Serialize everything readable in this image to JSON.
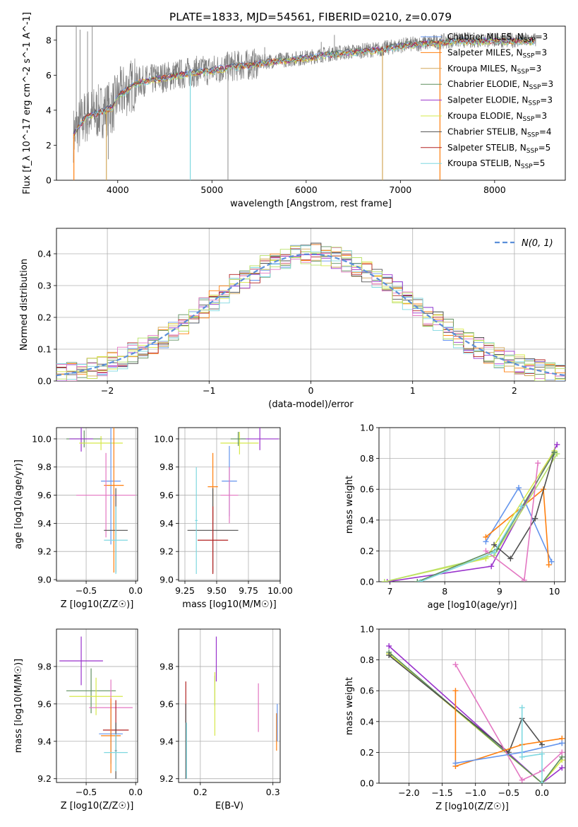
{
  "figure": {
    "title": "PLATE=1833, MJD=54561, FIBERID=0210, z=0.079"
  },
  "series_styles": [
    {
      "name": "Chabrier MILES",
      "color": "#6495ed"
    },
    {
      "name": "Salpeter MILES",
      "color": "#ff7f0e"
    },
    {
      "name": "Kroupa MILES",
      "color": "#d2a85a"
    },
    {
      "name": "Chabrier ELODIE",
      "color": "#5f8f5f"
    },
    {
      "name": "Salpeter ELODIE",
      "color": "#9932cc"
    },
    {
      "name": "Kroupa ELODIE",
      "color": "#d6e84a"
    },
    {
      "name": "Chabrier STELIB",
      "color": "#505050"
    },
    {
      "name": "Salpeter STELIB",
      "color": "#b22222"
    },
    {
      "name": "Kroupa STELIB",
      "color": "#7fd8e0"
    }
  ],
  "chart_data": [
    {
      "id": "spectrum",
      "type": "line",
      "title": "",
      "xlabel": "wavelength [Angstrom, rest frame]",
      "ylabel": "Flux [f_λ 10^-17 erg cm^-2 s^-1 A^-1]",
      "xlim": [
        3350,
        8750
      ],
      "ylim": [
        0,
        8.8
      ],
      "xticks": [
        4000,
        5000,
        6000,
        7000,
        8000
      ],
      "yticks": [
        0,
        2,
        4,
        6,
        8
      ],
      "grid": false,
      "legend_position": "lower-right",
      "legend": [
        {
          "label": "Chabrier MILES, N",
          "sub": "SSP",
          "tail": "=3",
          "color": "#6495ed"
        },
        {
          "label": "Salpeter MILES, N",
          "sub": "SSP",
          "tail": "=3",
          "color": "#ff7f0e"
        },
        {
          "label": "Kroupa MILES, N",
          "sub": "SSP",
          "tail": "=3",
          "color": "#d2a85a"
        },
        {
          "label": "Chabrier ELODIE, N",
          "sub": "SSP",
          "tail": "=3",
          "color": "#5f8f5f"
        },
        {
          "label": "Salpeter ELODIE, N",
          "sub": "SSP",
          "tail": "=3",
          "color": "#9932cc"
        },
        {
          "label": "Kroupa ELODIE, N",
          "sub": "SSP",
          "tail": "=3",
          "color": "#d6e84a"
        },
        {
          "label": "Chabrier STELIB, N",
          "sub": "SSP",
          "tail": "=4",
          "color": "#505050"
        },
        {
          "label": "Salpeter STELIB, N",
          "sub": "SSP",
          "tail": "=5",
          "color": "#b22222"
        },
        {
          "label": "Kroupa STELIB, N",
          "sub": "SSP",
          "tail": "=5",
          "color": "#7fd8e0"
        }
      ],
      "data_color": "#808080",
      "data_x_range": [
        3530,
        8440
      ],
      "continuum": [
        [
          3530,
          2.6
        ],
        [
          3650,
          3.6
        ],
        [
          3800,
          3.9
        ],
        [
          3950,
          4.2
        ],
        [
          4000,
          4.8
        ],
        [
          4200,
          5.6
        ],
        [
          4400,
          5.8
        ],
        [
          4600,
          6.0
        ],
        [
          4800,
          6.2
        ],
        [
          5000,
          6.3
        ],
        [
          5200,
          6.5
        ],
        [
          5400,
          6.6
        ],
        [
          5600,
          6.8
        ],
        [
          5800,
          6.9
        ],
        [
          6000,
          7.0
        ],
        [
          6200,
          7.2
        ],
        [
          6400,
          7.3
        ],
        [
          6600,
          7.4
        ],
        [
          6800,
          7.5
        ],
        [
          7000,
          7.7
        ],
        [
          7200,
          7.8
        ],
        [
          7400,
          7.9
        ],
        [
          7600,
          8.0
        ],
        [
          7800,
          8.0
        ],
        [
          8000,
          8.0
        ],
        [
          8200,
          8.0
        ],
        [
          8440,
          8.0
        ]
      ],
      "model_dips": [
        {
          "x": 3535,
          "y": 0.0,
          "color": "#ff7f0e"
        },
        {
          "x": 3880,
          "y": 0.0,
          "color": "#d2a85a"
        },
        {
          "x": 4770,
          "y": 0.0,
          "color": "#7fd8e0"
        },
        {
          "x": 6810,
          "y": 0.0,
          "color": "#d2a85a"
        },
        {
          "x": 7420,
          "y": 0.0,
          "color": "#ff7f0e"
        }
      ],
      "data_spikes": [
        {
          "x": 3560,
          "y": 8.8
        },
        {
          "x": 3600,
          "y": 8.6
        },
        {
          "x": 3680,
          "y": 8.5
        },
        {
          "x": 3730,
          "y": 8.8
        },
        {
          "x": 3900,
          "y": 1.2
        },
        {
          "x": 5170,
          "y": 0.0
        },
        {
          "x": 5560,
          "y": 7.6
        },
        {
          "x": 6160,
          "y": 7.9
        },
        {
          "x": 6300,
          "y": 8.3
        }
      ]
    },
    {
      "id": "residuals",
      "type": "histogram",
      "title": "",
      "xlabel": "(data-model)/error",
      "ylabel": "Normed distribution",
      "xlim": [
        -2.5,
        2.5
      ],
      "ylim": [
        0,
        0.48
      ],
      "xticks": [
        -2,
        -1,
        0,
        1,
        2
      ],
      "yticks": [
        0.0,
        0.1,
        0.2,
        0.3,
        0.4
      ],
      "grid": true,
      "bin_width": 0.1,
      "legend_position": "top-right",
      "legend": [
        {
          "label": "N(0, 1)",
          "color": "#5b8fd9",
          "style": "dashed"
        }
      ],
      "series_colors": [
        "#6495ed",
        "#ff7f0e",
        "#d2a85a",
        "#5f8f5f",
        "#9932cc",
        "#d6e84a",
        "#505050",
        "#b22222",
        "#7fd8e0",
        "#e377c2",
        "#b8e068"
      ]
    },
    {
      "id": "age-vs-Z",
      "type": "errorbar",
      "xlabel": "Z [log10(Z/Z☉)]",
      "ylabel": "age  [log10(age/yr)]",
      "xlim": [
        -0.8,
        0.02
      ],
      "ylim": [
        8.99,
        10.08
      ],
      "xticks": [
        -0.5,
        0.0
      ],
      "yticks": [
        9.0,
        9.2,
        9.4,
        9.6,
        9.8,
        10.0
      ],
      "grid": true,
      "points": [
        {
          "x": -0.52,
          "xe": 0.18,
          "y": 10.0,
          "ye": 0.06,
          "color": "#5f8f5f"
        },
        {
          "x": -0.55,
          "xe": 0.12,
          "y": 10.0,
          "ye": 0.09,
          "color": "#9932cc"
        },
        {
          "x": -0.35,
          "xe": 0.22,
          "y": 9.97,
          "ye": 0.05,
          "color": "#d6e84a"
        },
        {
          "x": -0.25,
          "xe": 0.1,
          "y": 9.7,
          "ye": 0.45,
          "color": "#6495ed"
        },
        {
          "x": -0.22,
          "xe": 0.1,
          "y": 9.67,
          "ye": 0.62,
          "color": "#ff7f0e"
        },
        {
          "x": -0.3,
          "xe": 0.3,
          "y": 9.6,
          "ye": 0.3,
          "color": "#e377c2"
        },
        {
          "x": -0.2,
          "xe": 0.12,
          "y": 9.35,
          "ye": 0.3,
          "color": "#505050"
        },
        {
          "x": -0.2,
          "xe": 0.12,
          "y": 9.28,
          "ye": 0.24,
          "color": "#7fd8e0"
        }
      ]
    },
    {
      "id": "age-vs-mass",
      "type": "errorbar",
      "xlabel": "mass [log10(M/M☉)]",
      "ylabel": "",
      "xlim": [
        9.2,
        10.0
      ],
      "ylim": [
        8.99,
        10.08
      ],
      "xticks": [
        9.25,
        9.5,
        9.75,
        10.0
      ],
      "yticks": [
        9.0,
        9.2,
        9.4,
        9.6,
        9.8,
        10.0
      ],
      "grid": true,
      "points": [
        {
          "x": 9.84,
          "xe": 0.15,
          "y": 10.0,
          "ye": 0.08,
          "color": "#9932cc"
        },
        {
          "x": 9.68,
          "xe": 0.15,
          "y": 9.97,
          "ye": 0.08,
          "color": "#d6e84a"
        },
        {
          "x": 9.67,
          "xe": 0.06,
          "y": 10.0,
          "ye": 0.05,
          "color": "#5f8f5f"
        },
        {
          "x": 9.6,
          "xe": 0.06,
          "y": 9.7,
          "ye": 0.25,
          "color": "#6495ed"
        },
        {
          "x": 9.6,
          "xe": 0.07,
          "y": 9.6,
          "ye": 0.2,
          "color": "#e377c2"
        },
        {
          "x": 9.47,
          "xe": 0.04,
          "y": 9.66,
          "ye": 0.24,
          "color": "#ff7f0e"
        },
        {
          "x": 9.47,
          "xe": 0.2,
          "y": 9.35,
          "ye": 0.3,
          "color": "#505050"
        },
        {
          "x": 9.47,
          "xe": 0.12,
          "y": 9.28,
          "ye": 0.24,
          "color": "#b22222"
        },
        {
          "x": 9.34,
          "xe": 0.01,
          "y": 9.42,
          "ye": 0.38,
          "color": "#7fd8e0"
        }
      ]
    },
    {
      "id": "weight-vs-age",
      "type": "line",
      "xlabel": "age  [log10(age/yr)]",
      "ylabel": "mass weight",
      "xlim": [
        6.8,
        10.2
      ],
      "ylim": [
        0,
        1.0
      ],
      "xticks": [
        7,
        8,
        9,
        10
      ],
      "yticks": [
        0.0,
        0.2,
        0.4,
        0.6,
        0.8,
        1.0
      ],
      "grid": true,
      "series": [
        {
          "color": "#6495ed",
          "x": [
            8.75,
            9.35,
            9.95
          ],
          "y": [
            0.26,
            0.61,
            0.13
          ]
        },
        {
          "color": "#ff7f0e",
          "x": [
            8.75,
            9.8,
            9.9
          ],
          "y": [
            0.29,
            0.6,
            0.11
          ]
        },
        {
          "color": "#9932cc",
          "x": [
            6.95,
            8.85,
            10.05
          ],
          "y": [
            0.0,
            0.1,
            0.89
          ]
        },
        {
          "color": "#d6e84a",
          "x": [
            6.9,
            8.75,
            10.0
          ],
          "y": [
            0.0,
            0.15,
            0.85
          ]
        },
        {
          "color": "#b8e068",
          "x": [
            6.9,
            8.9,
            10.05
          ],
          "y": [
            0.0,
            0.17,
            0.83
          ]
        },
        {
          "color": "#505050",
          "x": [
            8.9,
            9.2,
            9.65,
            10.0
          ],
          "y": [
            0.24,
            0.15,
            0.41,
            0.84
          ]
        },
        {
          "color": "#5f8f5f",
          "x": [
            7.5,
            8.95,
            10.0
          ],
          "y": [
            0.0,
            0.21,
            0.84
          ]
        },
        {
          "color": "#e377c2",
          "x": [
            8.75,
            9.45,
            9.7
          ],
          "y": [
            0.2,
            0.01,
            0.77
          ]
        },
        {
          "color": "#7fd8e0",
          "x": [
            7.55,
            8.9,
            9.4
          ],
          "y": [
            0.0,
            0.19,
            0.49
          ]
        }
      ]
    },
    {
      "id": "mass-vs-Z",
      "type": "errorbar",
      "xlabel": "Z [log10(Z/Z☉)]",
      "ylabel": "mass [log10(M/M☉)]",
      "xlim": [
        -0.8,
        0.02
      ],
      "ylim": [
        9.18,
        10.0
      ],
      "xticks": [
        -0.5,
        0.0
      ],
      "yticks": [
        9.2,
        9.4,
        9.6,
        9.8
      ],
      "grid": true,
      "points": [
        {
          "x": -0.55,
          "xe": 0.22,
          "y": 9.83,
          "ye": 0.13,
          "color": "#9932cc"
        },
        {
          "x": -0.45,
          "xe": 0.25,
          "y": 9.67,
          "ye": 0.12,
          "color": "#5f8f5f"
        },
        {
          "x": -0.4,
          "xe": 0.27,
          "y": 9.64,
          "ye": 0.1,
          "color": "#d6e84a"
        },
        {
          "x": -0.25,
          "xe": 0.22,
          "y": 9.58,
          "ye": 0.15,
          "color": "#e377c2"
        },
        {
          "x": -0.2,
          "xe": 0.13,
          "y": 9.46,
          "ye": 0.16,
          "color": "#b22222"
        },
        {
          "x": -0.25,
          "xe": 0.12,
          "y": 9.44,
          "ye": 0.16,
          "color": "#6495ed"
        },
        {
          "x": -0.25,
          "xe": 0.1,
          "y": 9.43,
          "ye": 0.2,
          "color": "#ff7f0e"
        },
        {
          "x": -0.2,
          "xe": 0.01,
          "y": 9.35,
          "ye": 0.15,
          "color": "#505050"
        },
        {
          "x": -0.2,
          "xe": 0.12,
          "y": 9.34,
          "ye": 0.1,
          "color": "#7fd8e0"
        }
      ]
    },
    {
      "id": "mass-vs-EBV",
      "type": "errorbar",
      "xlabel": "E(B-V)",
      "ylabel": "",
      "xlim": [
        0.17,
        0.31
      ],
      "ylim": [
        9.18,
        10.0
      ],
      "xticks": [
        0.2,
        0.3
      ],
      "yticks": [
        9.2,
        9.4,
        9.6,
        9.8
      ],
      "grid": true,
      "points": [
        {
          "x": 0.222,
          "xe": 0.0,
          "y": 9.84,
          "ye": 0.12,
          "color": "#9932cc"
        },
        {
          "x": 0.22,
          "xe": 0.0,
          "y": 9.67,
          "ye": 0.08,
          "color": "#5f8f5f"
        },
        {
          "x": 0.22,
          "xe": 0.0,
          "y": 9.6,
          "ye": 0.17,
          "color": "#d6e84a"
        },
        {
          "x": 0.28,
          "xe": 0.0,
          "y": 9.58,
          "ye": 0.13,
          "color": "#e377c2"
        },
        {
          "x": 0.18,
          "xe": 0.0,
          "y": 9.61,
          "ye": 0.11,
          "color": "#b22222"
        },
        {
          "x": 0.18,
          "xe": 0.0,
          "y": 9.4,
          "ye": 0.2,
          "color": "#505050"
        },
        {
          "x": 0.181,
          "xe": 0.0,
          "y": 9.35,
          "ye": 0.15,
          "color": "#7fd8e0"
        },
        {
          "x": 0.305,
          "xe": 0.0,
          "y": 9.45,
          "ye": 0.1,
          "color": "#ff7f0e"
        },
        {
          "x": 0.306,
          "xe": 0.0,
          "y": 9.5,
          "ye": 0.1,
          "color": "#6495ed"
        }
      ]
    },
    {
      "id": "weight-vs-Z",
      "type": "line",
      "xlabel": "Z [log10(Z/Z☉)]",
      "ylabel": "mass weight",
      "xlim": [
        -2.45,
        0.35
      ],
      "ylim": [
        0,
        1.0
      ],
      "xticks": [
        -2.0,
        -1.5,
        -1.0,
        -0.5,
        0.0
      ],
      "yticks": [
        0.0,
        0.2,
        0.4,
        0.6,
        0.8,
        1.0
      ],
      "grid": true,
      "series": [
        {
          "color": "#9932cc",
          "x": [
            -2.3,
            0.0,
            0.3
          ],
          "y": [
            0.89,
            0.0,
            0.1
          ]
        },
        {
          "color": "#d6e84a",
          "x": [
            -2.3,
            0.0,
            0.3
          ],
          "y": [
            0.84,
            0.0,
            0.15
          ]
        },
        {
          "color": "#5f8f5f",
          "x": [
            -2.3,
            0.0,
            0.3
          ],
          "y": [
            0.85,
            0.0,
            0.17
          ]
        },
        {
          "color": "#505050",
          "x": [
            -2.3,
            -0.5,
            -0.3,
            0.0
          ],
          "y": [
            0.83,
            0.2,
            0.42,
            0.25
          ]
        },
        {
          "color": "#e377c2",
          "x": [
            -1.3,
            -0.3,
            0.0,
            0.3
          ],
          "y": [
            0.77,
            0.02,
            0.08,
            0.2
          ]
        },
        {
          "color": "#ff7f0e",
          "x": [
            -1.3,
            -1.3,
            -0.3,
            0.3
          ],
          "y": [
            0.6,
            0.11,
            0.25,
            0.29
          ]
        },
        {
          "color": "#6495ed",
          "x": [
            -1.3,
            -0.3,
            0.3
          ],
          "y": [
            0.13,
            0.2,
            0.26
          ]
        },
        {
          "color": "#7fd8e0",
          "x": [
            -0.3,
            -0.3,
            0.0,
            0.0
          ],
          "y": [
            0.49,
            0.17,
            0.19,
            0.0
          ]
        }
      ]
    }
  ]
}
